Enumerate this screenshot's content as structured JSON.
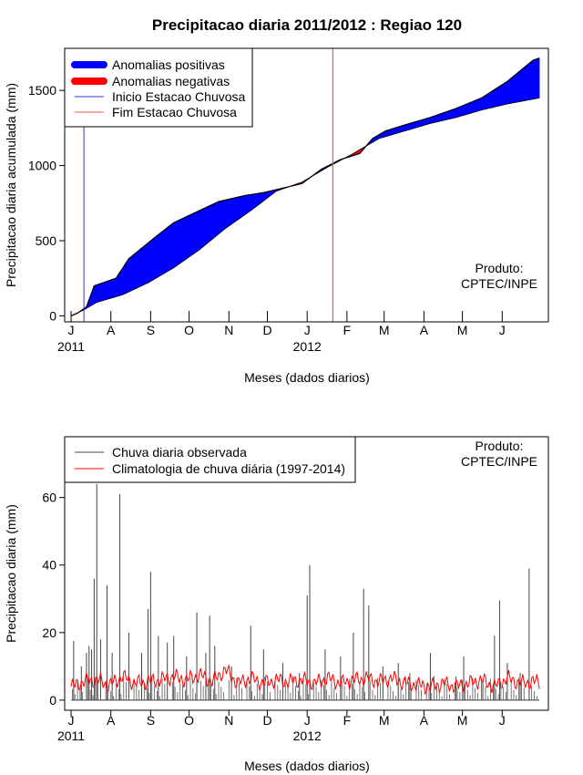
{
  "title": "Precipitacao diaria 2011/2012 : Regiao 120",
  "top_chart": {
    "ylabel": "Precipitacao diaria acumulada (mm)",
    "xlabel": "Meses (dados diarios)",
    "legend": {
      "pos": "Anomalias positivas",
      "neg": "Anomalias negativas",
      "start": "Inicio Estacao Chuvosa",
      "end": "Fim Estacao Chuvosa"
    },
    "product_line1": "Produto:",
    "product_line2": "CPTEC/INPE"
  },
  "bottom_chart": {
    "ylabel": "Precipitacao diaria (mm)",
    "xlabel": "Meses (dados diarios)",
    "legend": {
      "obs": "Chuva diaria observada",
      "clim": "Climatologia de chuva diária (1997-2014)"
    },
    "product_line1": "Produto:",
    "product_line2": "CPTEC/INPE"
  },
  "month_ticks": [
    "J",
    "A",
    "S",
    "O",
    "N",
    "D",
    "J",
    "F",
    "M",
    "A",
    "M",
    "J"
  ],
  "year_labels": [
    "2011",
    "2012"
  ],
  "colors": {
    "positive": "#0000ff",
    "negative": "#ff0000",
    "start_line": "#0000cd",
    "end_line": "#ff3030"
  },
  "chart_data": [
    {
      "type": "area",
      "name": "accumulated",
      "x_unit": "day index (0 = 1 Jul 2011)",
      "xlim": [
        -5,
        372
      ],
      "ylim": [
        -40,
        1780
      ],
      "yticks": [
        0,
        500,
        1000,
        1500
      ],
      "month_tick_days": [
        0,
        31,
        62,
        92,
        123,
        153,
        184,
        215,
        244,
        275,
        305,
        336
      ],
      "rain_season_start_day": 10,
      "rain_season_end_day": 204,
      "observed": [
        [
          0,
          0
        ],
        [
          5,
          18
        ],
        [
          12,
          60
        ],
        [
          18,
          200
        ],
        [
          35,
          250
        ],
        [
          45,
          380
        ],
        [
          65,
          520
        ],
        [
          80,
          620
        ],
        [
          95,
          680
        ],
        [
          115,
          760
        ],
        [
          135,
          800
        ],
        [
          150,
          820
        ],
        [
          165,
          850
        ],
        [
          180,
          880
        ],
        [
          195,
          975
        ],
        [
          210,
          1040
        ],
        [
          225,
          1080
        ],
        [
          235,
          1180
        ],
        [
          245,
          1230
        ],
        [
          260,
          1270
        ],
        [
          280,
          1320
        ],
        [
          300,
          1380
        ],
        [
          320,
          1450
        ],
        [
          340,
          1560
        ],
        [
          360,
          1700
        ],
        [
          365,
          1715
        ]
      ],
      "climatology": [
        [
          0,
          0
        ],
        [
          10,
          40
        ],
        [
          20,
          90
        ],
        [
          40,
          140
        ],
        [
          60,
          220
        ],
        [
          80,
          320
        ],
        [
          100,
          440
        ],
        [
          120,
          580
        ],
        [
          140,
          700
        ],
        [
          160,
          830
        ],
        [
          180,
          890
        ],
        [
          200,
          990
        ],
        [
          220,
          1080
        ],
        [
          240,
          1180
        ],
        [
          260,
          1230
        ],
        [
          280,
          1280
        ],
        [
          300,
          1320
        ],
        [
          320,
          1370
        ],
        [
          340,
          1410
        ],
        [
          365,
          1450
        ]
      ]
    },
    {
      "type": "bar",
      "name": "daily",
      "xlim": [
        -5,
        372
      ],
      "ylim": [
        -3,
        78
      ],
      "yticks": [
        0,
        20,
        40,
        60
      ],
      "observed_peaks": [
        [
          2,
          17.5
        ],
        [
          8,
          10
        ],
        [
          12,
          14
        ],
        [
          14,
          16
        ],
        [
          16,
          15
        ],
        [
          18,
          36
        ],
        [
          20,
          64
        ],
        [
          23,
          18
        ],
        [
          28,
          34
        ],
        [
          32,
          14
        ],
        [
          38,
          61
        ],
        [
          45,
          20
        ],
        [
          55,
          14
        ],
        [
          60,
          27
        ],
        [
          62,
          38
        ],
        [
          68,
          19
        ],
        [
          75,
          17
        ],
        [
          80,
          19
        ],
        [
          90,
          13
        ],
        [
          98,
          26
        ],
        [
          105,
          14
        ],
        [
          108,
          25
        ],
        [
          112,
          16
        ],
        [
          125,
          10
        ],
        [
          140,
          22
        ],
        [
          150,
          15
        ],
        [
          165,
          11
        ],
        [
          178,
          8
        ],
        [
          184,
          31
        ],
        [
          186,
          40
        ],
        [
          198,
          15
        ],
        [
          210,
          13
        ],
        [
          220,
          20
        ],
        [
          228,
          33
        ],
        [
          232,
          28
        ],
        [
          243,
          10
        ],
        [
          255,
          11
        ],
        [
          264,
          8
        ],
        [
          280,
          14
        ],
        [
          300,
          7
        ],
        [
          306,
          13
        ],
        [
          320,
          6
        ],
        [
          330,
          19
        ],
        [
          334,
          29.5
        ],
        [
          340,
          11
        ],
        [
          350,
          8
        ],
        [
          357,
          39
        ]
      ],
      "climatology_points": [
        [
          0,
          4
        ],
        [
          10,
          5.5
        ],
        [
          20,
          6
        ],
        [
          30,
          4.5
        ],
        [
          40,
          7
        ],
        [
          50,
          5
        ],
        [
          60,
          5.5
        ],
        [
          70,
          6
        ],
        [
          80,
          7
        ],
        [
          90,
          6
        ],
        [
          100,
          7.5
        ],
        [
          110,
          5.5
        ],
        [
          120,
          9
        ],
        [
          130,
          5
        ],
        [
          140,
          6.5
        ],
        [
          150,
          5
        ],
        [
          160,
          6
        ],
        [
          170,
          5.5
        ],
        [
          180,
          6
        ],
        [
          190,
          5
        ],
        [
          200,
          6.5
        ],
        [
          210,
          5
        ],
        [
          220,
          6
        ],
        [
          230,
          6.5
        ],
        [
          240,
          5.5
        ],
        [
          250,
          6.5
        ],
        [
          260,
          5
        ],
        [
          270,
          4.5
        ],
        [
          280,
          4
        ],
        [
          290,
          5
        ],
        [
          300,
          4
        ],
        [
          310,
          5
        ],
        [
          320,
          6
        ],
        [
          330,
          4
        ],
        [
          340,
          6.5
        ],
        [
          350,
          5
        ],
        [
          360,
          5.5
        ]
      ]
    }
  ]
}
